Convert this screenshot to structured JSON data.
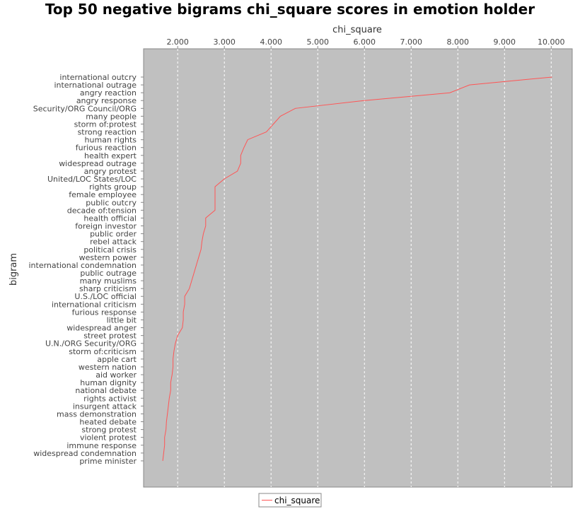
{
  "chart_data": {
    "type": "line",
    "title": "Top 50 negative bigrams chi_square scores in emotion holder",
    "xlabel": "chi_square",
    "ylabel": "bigram",
    "xlim": [
      1.27,
      10.45
    ],
    "x_ticks": [
      "2.000",
      "3.000",
      "4.000",
      "5.000",
      "6.000",
      "7.000",
      "8.000",
      "9.000",
      "10.000"
    ],
    "x_tick_values": [
      2,
      3,
      4,
      5,
      6,
      7,
      8,
      9,
      10
    ],
    "grid": true,
    "legend_placement": "bottom",
    "colors": {
      "series": "#ff5555",
      "plot_background": "#c0c0c0",
      "grid": "#ffffff"
    },
    "categories": [
      "international outcry",
      "international outrage",
      "angry reaction",
      "angry response",
      "Security/ORG Council/ORG",
      "many people",
      "storm of:protest",
      "strong reaction",
      "human rights",
      "furious reaction",
      "health expert",
      "widespread outrage",
      "angry protest",
      "United/LOC States/LOC",
      "rights group",
      "female employee",
      "public outcry",
      "decade of:tension",
      "health official",
      "foreign investor",
      "public order",
      "rebel attack",
      "political crisis",
      "western power",
      "international condemnation",
      "public outrage",
      "many muslims",
      "sharp criticism",
      "U.S./LOC official",
      "international criticism",
      "furious response",
      "little bit",
      "widespread anger",
      "street protest",
      "U.N./ORG Security/ORG",
      "storm of:criticism",
      "apple cart",
      "western nation",
      "aid worker",
      "human dignity",
      "national debate",
      "rights activist",
      "insurgent attack",
      "mass demonstration",
      "heated debate",
      "strong protest",
      "violent protest",
      "immune response",
      "widespread condemnation",
      "prime minister"
    ],
    "series": [
      {
        "name": "chi_square",
        "values": [
          10.02,
          8.25,
          7.83,
          6.0,
          4.52,
          4.2,
          4.05,
          3.9,
          3.5,
          3.42,
          3.35,
          3.35,
          3.28,
          3.0,
          2.8,
          2.8,
          2.8,
          2.8,
          2.6,
          2.6,
          2.55,
          2.52,
          2.5,
          2.45,
          2.4,
          2.35,
          2.3,
          2.25,
          2.15,
          2.15,
          2.12,
          2.12,
          2.1,
          2.0,
          1.95,
          1.92,
          1.9,
          1.9,
          1.88,
          1.85,
          1.85,
          1.82,
          1.8,
          1.78,
          1.76,
          1.75,
          1.72,
          1.72,
          1.7,
          1.68
        ]
      }
    ]
  }
}
